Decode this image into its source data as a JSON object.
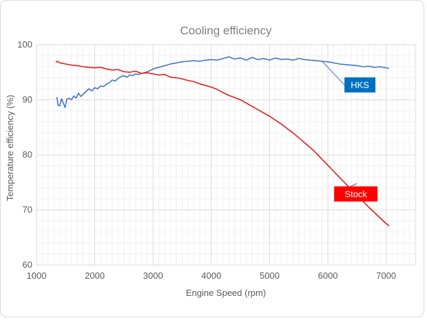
{
  "chart_data": {
    "type": "line",
    "title": "Cooling efficiency",
    "xlabel": "Engine Speed (rpm)",
    "ylabel": "Temperature efficiency (%)",
    "xlim": [
      1000,
      7500
    ],
    "ylim": [
      60,
      100
    ],
    "x_ticks": [
      1000,
      2000,
      3000,
      4000,
      5000,
      6000,
      7000
    ],
    "y_ticks": [
      60,
      70,
      80,
      90,
      100
    ],
    "x_tick_labels": [
      "1000",
      "2000",
      "3000",
      "4000",
      "5000",
      "6000",
      "7000"
    ],
    "y_tick_labels": [
      "60",
      "70",
      "80",
      "90",
      "100"
    ],
    "grid": true,
    "series": [
      {
        "name": "HKS",
        "color": "#4472c4",
        "label_color": "#0070c0",
        "label_anchor": [
          5900,
          97.0
        ],
        "label_pos": [
          6550,
          92.7
        ],
        "points": [
          [
            1350,
            90.5
          ],
          [
            1370,
            89.0
          ],
          [
            1400,
            88.9
          ],
          [
            1430,
            90.2
          ],
          [
            1460,
            89.4
          ],
          [
            1490,
            88.6
          ],
          [
            1520,
            90.1
          ],
          [
            1560,
            90.3
          ],
          [
            1600,
            90.0
          ],
          [
            1640,
            90.7
          ],
          [
            1680,
            90.3
          ],
          [
            1720,
            91.2
          ],
          [
            1760,
            90.6
          ],
          [
            1800,
            91.0
          ],
          [
            1850,
            91.5
          ],
          [
            1900,
            92.0
          ],
          [
            1950,
            91.6
          ],
          [
            2000,
            92.2
          ],
          [
            2050,
            92.0
          ],
          [
            2100,
            92.5
          ],
          [
            2150,
            92.4
          ],
          [
            2200,
            92.8
          ],
          [
            2250,
            93.1
          ],
          [
            2300,
            93.6
          ],
          [
            2350,
            93.4
          ],
          [
            2400,
            93.9
          ],
          [
            2450,
            94.2
          ],
          [
            2500,
            94.4
          ],
          [
            2550,
            94.1
          ],
          [
            2600,
            94.5
          ],
          [
            2650,
            94.4
          ],
          [
            2700,
            94.7
          ],
          [
            2750,
            94.6
          ],
          [
            2800,
            94.8
          ],
          [
            2850,
            94.9
          ],
          [
            2900,
            95.1
          ],
          [
            2950,
            95.3
          ],
          [
            3000,
            95.6
          ],
          [
            3100,
            95.9
          ],
          [
            3200,
            96.2
          ],
          [
            3300,
            96.5
          ],
          [
            3400,
            96.7
          ],
          [
            3500,
            96.9
          ],
          [
            3600,
            97.0
          ],
          [
            3700,
            97.1
          ],
          [
            3800,
            97.0
          ],
          [
            3900,
            97.2
          ],
          [
            4000,
            97.3
          ],
          [
            4100,
            97.2
          ],
          [
            4200,
            97.5
          ],
          [
            4300,
            97.8
          ],
          [
            4400,
            97.4
          ],
          [
            4500,
            97.6
          ],
          [
            4600,
            97.2
          ],
          [
            4700,
            97.7
          ],
          [
            4800,
            97.3
          ],
          [
            4900,
            97.5
          ],
          [
            5000,
            97.2
          ],
          [
            5100,
            97.6
          ],
          [
            5200,
            97.3
          ],
          [
            5300,
            97.4
          ],
          [
            5400,
            97.2
          ],
          [
            5500,
            97.5
          ],
          [
            5600,
            97.3
          ],
          [
            5700,
            97.2
          ],
          [
            5800,
            97.1
          ],
          [
            5900,
            97.0
          ],
          [
            6000,
            96.9
          ],
          [
            6100,
            96.7
          ],
          [
            6200,
            96.5
          ],
          [
            6300,
            96.4
          ],
          [
            6400,
            96.3
          ],
          [
            6500,
            96.2
          ],
          [
            6600,
            96.0
          ],
          [
            6700,
            96.1
          ],
          [
            6800,
            95.9
          ],
          [
            6900,
            96.0
          ],
          [
            7000,
            95.8
          ],
          [
            7050,
            95.7
          ]
        ]
      },
      {
        "name": "Stock",
        "color": "#e31a1c",
        "label_color": "#ff0000",
        "label_anchor": [
          6500,
          74.8
        ],
        "label_pos": [
          6480,
          72.9
        ],
        "points": [
          [
            1330,
            96.8
          ],
          [
            1360,
            97.0
          ],
          [
            1400,
            96.7
          ],
          [
            1450,
            96.6
          ],
          [
            1500,
            96.5
          ],
          [
            1600,
            96.3
          ],
          [
            1700,
            96.2
          ],
          [
            1800,
            96.0
          ],
          [
            1900,
            95.9
          ],
          [
            2000,
            95.8
          ],
          [
            2100,
            95.9
          ],
          [
            2200,
            95.6
          ],
          [
            2300,
            95.4
          ],
          [
            2400,
            95.5
          ],
          [
            2500,
            95.1
          ],
          [
            2600,
            95.0
          ],
          [
            2700,
            95.2
          ],
          [
            2800,
            94.8
          ],
          [
            2900,
            94.9
          ],
          [
            3000,
            94.7
          ],
          [
            3100,
            94.5
          ],
          [
            3200,
            94.6
          ],
          [
            3300,
            94.1
          ],
          [
            3400,
            94.0
          ],
          [
            3500,
            93.8
          ],
          [
            3600,
            93.5
          ],
          [
            3700,
            93.3
          ],
          [
            3800,
            92.9
          ],
          [
            3900,
            92.6
          ],
          [
            4000,
            92.3
          ],
          [
            4100,
            91.9
          ],
          [
            4200,
            91.3
          ],
          [
            4300,
            90.8
          ],
          [
            4400,
            90.4
          ],
          [
            4500,
            90.0
          ],
          [
            4600,
            89.4
          ],
          [
            4700,
            88.8
          ],
          [
            4800,
            88.2
          ],
          [
            4900,
            87.6
          ],
          [
            5000,
            87.0
          ],
          [
            5100,
            86.3
          ],
          [
            5200,
            85.6
          ],
          [
            5300,
            84.8
          ],
          [
            5400,
            84.0
          ],
          [
            5500,
            83.1
          ],
          [
            5600,
            82.2
          ],
          [
            5700,
            81.3
          ],
          [
            5800,
            80.3
          ],
          [
            5900,
            79.2
          ],
          [
            6000,
            78.1
          ],
          [
            6100,
            77.0
          ],
          [
            6200,
            75.9
          ],
          [
            6300,
            74.8
          ],
          [
            6400,
            73.7
          ],
          [
            6500,
            72.7
          ],
          [
            6600,
            71.6
          ],
          [
            6700,
            70.5
          ],
          [
            6800,
            69.5
          ],
          [
            6900,
            68.5
          ],
          [
            7000,
            67.5
          ],
          [
            7050,
            67.1
          ]
        ]
      }
    ]
  }
}
